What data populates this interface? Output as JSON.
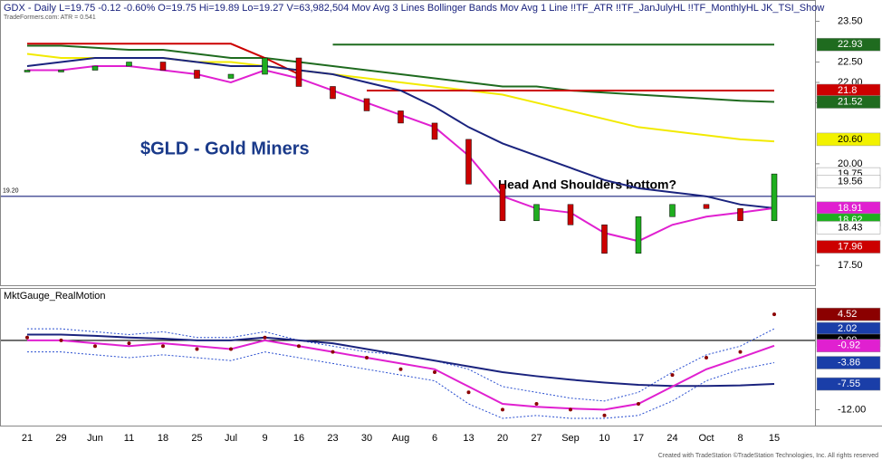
{
  "header": "GDX - Daily  L=19.75  -0.12  -0.60%  O=19.75  Hi=19.89  Lo=19.27  V=63,982,504  Mov Avg 3 Lines  Bollinger Bands  Mov Avg 1 Line  !!TF_ATR  !!TF_JanJulyHL  !!TF_MonthlyHL  JK_TSI_Show",
  "watermark": "TradeFormers.com: ATR = 0.541",
  "footer": "Created with TradeStation ©TradeStation Technologies, Inc. All rights reserved",
  "chart_data": [
    {
      "type": "line",
      "annotations": [
        "$GLD - Gold Miners",
        "Head And Shoulders bottom?"
      ],
      "categories": [
        "21",
        "29",
        "Jun",
        "11",
        "18",
        "25",
        "Jul",
        "9",
        "16",
        "23",
        "30",
        "Aug",
        "6",
        "13",
        "20",
        "27",
        "Sep",
        "10",
        "17",
        "24",
        "Oct",
        "8",
        "15"
      ],
      "ylim": [
        17.06,
        23.98
      ],
      "yticks": [
        {
          "value": 17.5,
          "label": "17.50"
        },
        {
          "value": 20,
          "label": "20.00"
        },
        {
          "value": 21.5,
          "label": "21.50"
        },
        {
          "value": 22,
          "label": "22.00"
        },
        {
          "value": 22.5,
          "label": "22.50"
        },
        {
          "value": 23.5,
          "label": "23.50"
        }
      ],
      "series": [
        {
          "style": "solid",
          "color": "#f2ea00",
          "values": [
            22.7,
            22.6,
            22.6,
            22.6,
            22.6,
            22.5,
            22.5,
            22.4,
            22.3,
            22.2,
            22.1,
            22.0,
            21.9,
            21.8,
            21.7,
            21.5,
            21.3,
            21.1,
            20.9,
            20.8,
            20.7,
            20.6,
            20.55
          ]
        },
        {
          "style": "solid",
          "color": "#1f6b1f",
          "values": [
            22.9,
            22.9,
            22.85,
            22.8,
            22.8,
            22.7,
            22.6,
            22.6,
            22.5,
            22.4,
            22.3,
            22.2,
            22.1,
            22.0,
            21.9,
            21.9,
            21.8,
            21.75,
            21.7,
            21.65,
            21.6,
            21.55,
            21.52
          ]
        },
        {
          "style": "solid",
          "color": "#1f6b1f",
          "values": [
            null,
            null,
            null,
            null,
            null,
            null,
            null,
            null,
            null,
            22.93,
            22.93,
            22.93,
            22.93,
            22.93,
            22.93,
            22.93,
            22.93,
            22.93,
            22.93,
            22.93,
            22.93,
            22.93,
            22.93
          ]
        },
        {
          "style": "solid",
          "color": "#cc0000",
          "values": [
            22.95,
            22.95,
            22.95,
            22.95,
            22.95,
            22.95,
            22.95,
            22.6,
            22.2,
            null,
            21.8,
            21.8,
            21.8,
            21.8,
            21.8,
            21.8,
            21.8,
            21.8,
            21.8,
            21.8,
            21.8,
            21.8,
            21.8
          ]
        },
        {
          "style": "solid",
          "color": "#1a237e",
          "values": [
            22.4,
            22.5,
            22.6,
            22.6,
            22.6,
            22.5,
            22.4,
            22.4,
            22.3,
            22.2,
            22.0,
            21.8,
            21.4,
            20.9,
            20.5,
            20.2,
            19.9,
            19.6,
            19.4,
            19.3,
            19.2,
            19.0,
            18.91
          ]
        },
        {
          "style": "solid",
          "color": "#e020d0",
          "values": [
            22.3,
            22.3,
            22.4,
            22.4,
            22.3,
            22.2,
            22.0,
            22.3,
            22.1,
            21.8,
            21.5,
            21.2,
            20.9,
            20.2,
            19.2,
            18.9,
            18.8,
            18.3,
            18.1,
            18.5,
            18.7,
            18.8,
            18.91
          ]
        },
        {
          "style": "candles",
          "color": "#1fae1f",
          "values": [
            22.3,
            22.3,
            22.4,
            22.5,
            22.3,
            22.1,
            22.2,
            22.6,
            21.9,
            21.6,
            21.3,
            21.0,
            20.6,
            19.5,
            18.6,
            19.0,
            18.5,
            17.8,
            18.7,
            19.0,
            18.9,
            18.6,
            19.75
          ]
        }
      ],
      "hlines": [
        {
          "value": 19.2,
          "label": "19.20",
          "color": "#1a237e"
        }
      ],
      "badges": [
        22.93,
        21.8,
        21.52,
        {
          "value": 20.6,
          "label": "20.60"
        },
        19.75,
        19.56,
        18.91,
        18.62,
        18.43,
        17.96
      ],
      "badge_colors": [
        "#1f6b1f",
        "#cc0000",
        "#1f6b1f",
        "#f2f200",
        "#ffffff",
        "#ffffff",
        "#e020d0",
        "#1fae1f",
        "#ffffff",
        "#cc0000"
      ]
    },
    {
      "type": "line",
      "title": "MktGauge_RealMotion",
      "categories": [
        "21",
        "29",
        "Jun",
        "11",
        "18",
        "25",
        "Jul",
        "9",
        "16",
        "23",
        "30",
        "Aug",
        "6",
        "13",
        "20",
        "27",
        "Sep",
        "10",
        "17",
        "24",
        "Oct",
        "8",
        "15"
      ],
      "ylim": [
        -14.6,
        8.77
      ],
      "yticks": [
        {
          "value": -12,
          "label": "-12.00"
        }
      ],
      "series": [
        {
          "style": "dotted",
          "color": "#2a4fd0",
          "values": [
            2,
            2,
            1.5,
            1,
            1.5,
            0.5,
            0.5,
            1.5,
            0,
            -1,
            -2,
            -2.5,
            -3.5,
            -5,
            -8,
            -9,
            -10,
            -10.5,
            -9,
            -5.5,
            -2.5,
            -1,
            2.02
          ]
        },
        {
          "style": "dotted",
          "color": "#2a4fd0",
          "values": [
            -2,
            -2,
            -2.5,
            -3,
            -2.5,
            -3,
            -3.5,
            -2,
            -3,
            -4,
            -5,
            -6,
            -7,
            -11,
            -13.5,
            -13,
            -13.5,
            -13.5,
            -13,
            -10.5,
            -7,
            -5,
            -3.86
          ]
        },
        {
          "style": "solid",
          "color": "#1a237e",
          "values": [
            1,
            1,
            0.8,
            0.5,
            0.3,
            0,
            0,
            0.5,
            0,
            -0.5,
            -1.5,
            -2.5,
            -3.5,
            -4.5,
            -5.5,
            -6.2,
            -6.8,
            -7.3,
            -7.7,
            -7.9,
            -7.9,
            -7.8,
            -7.55
          ]
        },
        {
          "style": "solid",
          "color": "#e020d0",
          "values": [
            0,
            0,
            -0.5,
            -1,
            -0.5,
            -1,
            -1.5,
            0,
            -1,
            -2,
            -3,
            -4,
            -5,
            -8,
            -11,
            -11.5,
            -11.8,
            -12,
            -11,
            -8,
            -5,
            -3,
            -0.92
          ]
        },
        {
          "style": "dots",
          "color": "#8b0000",
          "values": [
            0.5,
            0,
            -1,
            -0.5,
            -1,
            -1.5,
            -1.5,
            0.5,
            -1,
            -2,
            -3,
            -5,
            -5.5,
            -9,
            -12,
            -11,
            -12,
            -13,
            -11,
            -6,
            -3,
            -2,
            4.52
          ]
        }
      ],
      "hlines": [
        {
          "value": 0,
          "label": "0.00",
          "color": "#000000"
        }
      ],
      "badges": [
        4.52,
        2.02,
        {
          "value": 0,
          "label": "0.00"
        },
        -0.92,
        -3.86,
        -7.55
      ],
      "badge_colors": [
        "#8b0000",
        "#1a3ea8",
        "#000000",
        "#e020d0",
        "#1a3ea8",
        "#1a3ea8"
      ]
    }
  ]
}
